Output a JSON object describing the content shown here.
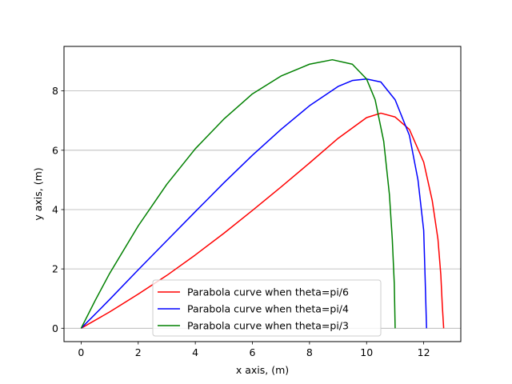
{
  "chart_data": {
    "type": "line",
    "title": "",
    "xlabel": "x axis, (m)",
    "ylabel": "y axis, (m)",
    "xlim": [
      -0.6,
      13.3
    ],
    "ylim": [
      -0.45,
      9.5
    ],
    "xticks": [
      0,
      2,
      4,
      6,
      8,
      10,
      12
    ],
    "yticks": [
      0,
      2,
      4,
      6,
      8
    ],
    "grid": "horizontal",
    "legend_position": "lower center",
    "series": [
      {
        "name": "Parabola curve when theta=pi/6",
        "color": "#ff0000",
        "points": [
          [
            0,
            0
          ],
          [
            1,
            0.55
          ],
          [
            2,
            1.15
          ],
          [
            3,
            1.78
          ],
          [
            4,
            2.47
          ],
          [
            5,
            3.2
          ],
          [
            6,
            3.97
          ],
          [
            7,
            4.76
          ],
          [
            8,
            5.57
          ],
          [
            9,
            6.4
          ],
          [
            10,
            7.1
          ],
          [
            10.5,
            7.25
          ],
          [
            11,
            7.12
          ],
          [
            11.5,
            6.7
          ],
          [
            12,
            5.6
          ],
          [
            12.3,
            4.3
          ],
          [
            12.5,
            3
          ],
          [
            12.6,
            1.8
          ],
          [
            12.65,
            0.8
          ],
          [
            12.7,
            0
          ]
        ]
      },
      {
        "name": "Parabola curve when theta=pi/4",
        "color": "#0000ff",
        "points": [
          [
            0,
            0
          ],
          [
            1,
            0.97
          ],
          [
            2,
            1.97
          ],
          [
            3,
            2.95
          ],
          [
            4,
            3.93
          ],
          [
            5,
            4.9
          ],
          [
            6,
            5.83
          ],
          [
            7,
            6.7
          ],
          [
            8,
            7.5
          ],
          [
            9,
            8.15
          ],
          [
            9.5,
            8.35
          ],
          [
            10,
            8.4
          ],
          [
            10.5,
            8.3
          ],
          [
            11,
            7.7
          ],
          [
            11.5,
            6.5
          ],
          [
            11.8,
            5
          ],
          [
            12,
            3.3
          ],
          [
            12.05,
            1.7
          ],
          [
            12.1,
            0
          ]
        ]
      },
      {
        "name": "Parabola curve when theta=pi/3",
        "color": "#008000",
        "points": [
          [
            0,
            0
          ],
          [
            0.5,
            0.95
          ],
          [
            1,
            1.85
          ],
          [
            2,
            3.45
          ],
          [
            3,
            4.85
          ],
          [
            4,
            6.05
          ],
          [
            5,
            7.05
          ],
          [
            6,
            7.9
          ],
          [
            7,
            8.5
          ],
          [
            8,
            8.9
          ],
          [
            8.8,
            9.05
          ],
          [
            9.5,
            8.9
          ],
          [
            10,
            8.4
          ],
          [
            10.3,
            7.7
          ],
          [
            10.6,
            6.3
          ],
          [
            10.8,
            4.5
          ],
          [
            10.9,
            3
          ],
          [
            10.97,
            1.5
          ],
          [
            11,
            0
          ]
        ]
      }
    ]
  }
}
